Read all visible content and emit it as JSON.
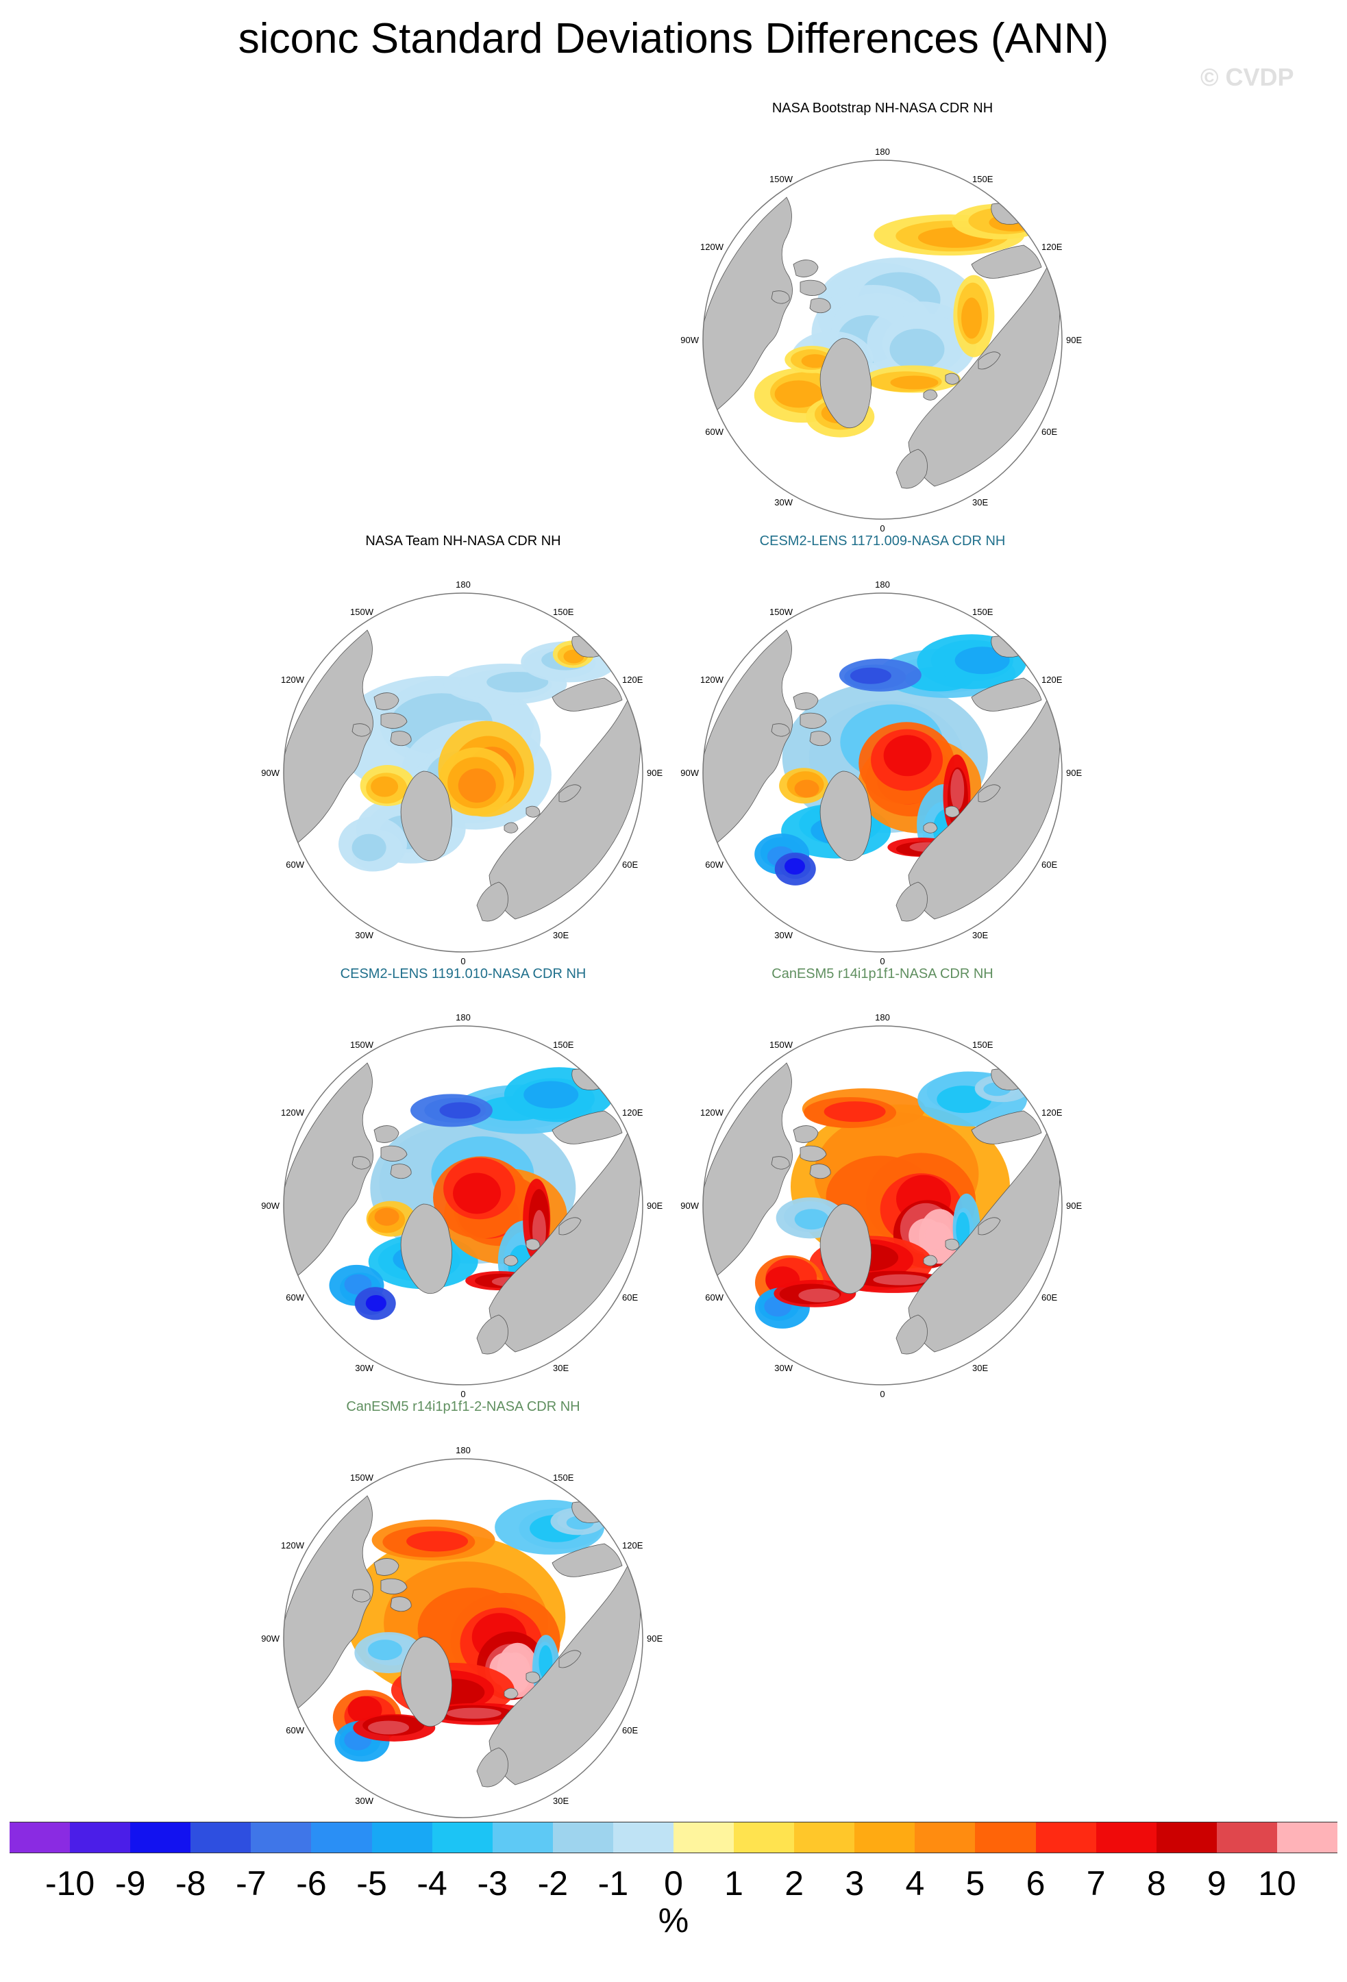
{
  "title": "siconc Standard Deviations Differences (ANN)",
  "copyright": "© CVDP",
  "colors": {
    "land": "#bebebe",
    "ocean": "#ffffff",
    "bins": [
      "#8a2be2",
      "#4b1ee8",
      "#1212f0",
      "#2e4fe0",
      "#3f76e8",
      "#2a8ff5",
      "#18a8f5",
      "#1cc4f5",
      "#5ec9f5",
      "#9ed4ee",
      "#bfe3f5",
      "#fff59d",
      "#ffe34f",
      "#ffc72a",
      "#ffaa12",
      "#ff8c10",
      "#ff6408",
      "#ff2a12",
      "#f00a0a",
      "#cc0000",
      "#e0474d",
      "#ffb3b8"
    ]
  },
  "lon_labels": {
    "top": "180",
    "top_left": "150W",
    "top_right": "150E",
    "upper_left": "120W",
    "upper_right": "120E",
    "left": "90W",
    "right": "90E",
    "lower_left": "60W",
    "lower_right": "60E",
    "bottom_left": "30W",
    "bottom_right": "30E",
    "bottom": "0"
  },
  "panels": [
    {
      "id": "bootstrap",
      "title": "NASA Bootstrap NH-NASA CDR NH",
      "title_color": "#000000",
      "pattern": "weak_pos"
    },
    {
      "id": "team",
      "title": "NASA Team NH-NASA CDR NH",
      "title_color": "#000000",
      "pattern": "team"
    },
    {
      "id": "cesm1171",
      "title": "CESM2-LENS 1171.009-NASA CDR NH",
      "title_color": "#1f6f8b",
      "pattern": "cesm"
    },
    {
      "id": "cesm1191",
      "title": "CESM2-LENS 1191.010-NASA CDR NH",
      "title_color": "#1f6f8b",
      "pattern": "cesm"
    },
    {
      "id": "canesm1",
      "title": "CanESM5 r14i1p1f1-NASA CDR NH",
      "title_color": "#5f8f5f",
      "pattern": "canesm"
    },
    {
      "id": "canesm2",
      "title": "CanESM5 r14i1p1f1-2-NASA CDR NH",
      "title_color": "#5f8f5f",
      "pattern": "canesm"
    }
  ],
  "colorbar": {
    "ticks": [
      "-10",
      "-9",
      "-8",
      "-7",
      "-6",
      "-5",
      "-4",
      "-3",
      "-2",
      "-1",
      "0",
      "1",
      "2",
      "3",
      "4",
      "5",
      "6",
      "7",
      "8",
      "9",
      "10"
    ],
    "unit": "%"
  }
}
